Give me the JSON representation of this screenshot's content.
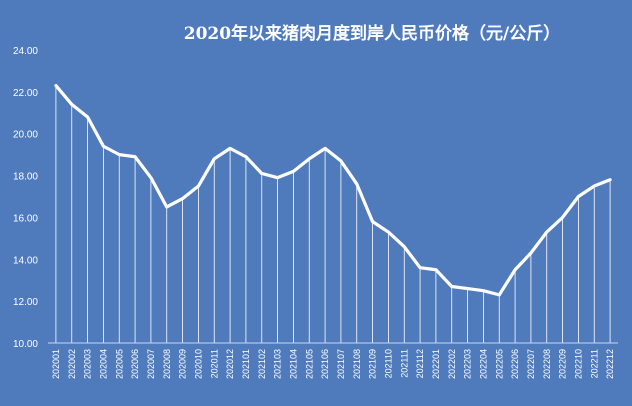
{
  "chart_data": {
    "type": "line",
    "title": "2020年以来猪肉月度到岸人民币价格（元/公斤）",
    "categories": [
      "202001",
      "202002",
      "202003",
      "202004",
      "202005",
      "202006",
      "202007",
      "202008",
      "202009",
      "202010",
      "202011",
      "202012",
      "202101",
      "202102",
      "202103",
      "202104",
      "202105",
      "202106",
      "202107",
      "202108",
      "202109",
      "202110",
      "202111",
      "202112",
      "202201",
      "202202",
      "202203",
      "202204",
      "202205",
      "202206",
      "202207",
      "202208",
      "202209",
      "202210",
      "202211",
      "202212"
    ],
    "values": [
      22.3,
      21.4,
      20.8,
      19.4,
      19.0,
      18.9,
      17.9,
      16.5,
      16.9,
      17.5,
      18.8,
      19.3,
      18.9,
      18.1,
      17.9,
      18.2,
      18.8,
      19.3,
      18.7,
      17.6,
      15.8,
      15.3,
      14.6,
      13.6,
      13.5,
      12.7,
      12.6,
      12.5,
      12.3,
      13.5,
      14.3,
      15.3,
      16.0,
      17.0,
      17.5,
      17.8
    ],
    "yticks": [
      "10.00",
      "12.00",
      "14.00",
      "16.00",
      "18.00",
      "20.00",
      "22.00",
      "24.00"
    ],
    "ylim": [
      10,
      24
    ],
    "grid": false,
    "drop_lines": true,
    "colors": {
      "background": "#4f7bbd",
      "line": "#ffffff",
      "text": "#ffffff"
    }
  }
}
